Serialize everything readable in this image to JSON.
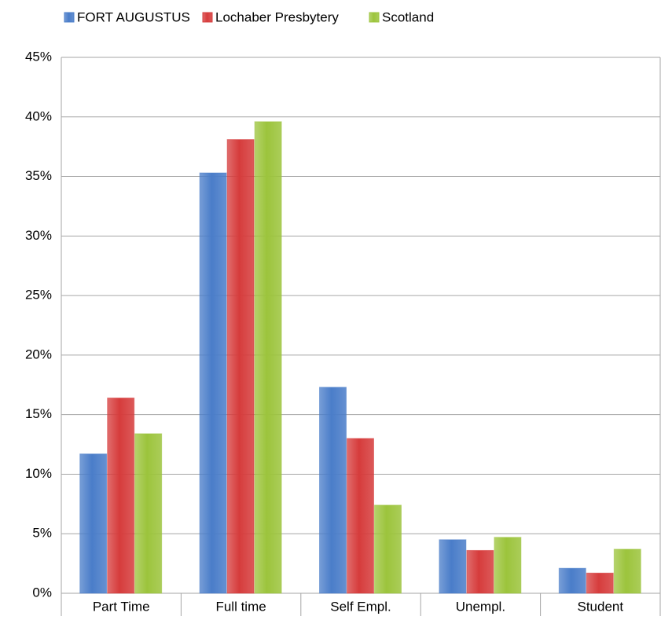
{
  "chart_data": {
    "type": "bar",
    "categories": [
      "Part Time",
      "Full time",
      "Self Empl.",
      "Unempl.",
      "Student"
    ],
    "series": [
      {
        "name": "FORT AUGUSTUS",
        "color": "#4a7dc9",
        "values": [
          11.7,
          35.3,
          17.3,
          4.5,
          2.1
        ]
      },
      {
        "name": "Lochaber Presbytery",
        "color": "#d63c3c",
        "values": [
          16.4,
          38.1,
          13.0,
          3.6,
          1.7
        ]
      },
      {
        "name": "Scotland",
        "color": "#9cc43c",
        "values": [
          13.4,
          39.6,
          7.4,
          4.7,
          3.7
        ]
      }
    ],
    "ylim": [
      0,
      45
    ],
    "yticks": [
      {
        "value": 0,
        "label": "0%"
      },
      {
        "value": 5,
        "label": "5%"
      },
      {
        "value": 10,
        "label": "10%"
      },
      {
        "value": 15,
        "label": "15%"
      },
      {
        "value": 20,
        "label": "20%"
      },
      {
        "value": 25,
        "label": "25%"
      },
      {
        "value": 30,
        "label": "30%"
      },
      {
        "value": 35,
        "label": "35%"
      },
      {
        "value": 40,
        "label": "40%"
      },
      {
        "value": 45,
        "label": "45%"
      }
    ],
    "grid": true,
    "legend": "top"
  }
}
